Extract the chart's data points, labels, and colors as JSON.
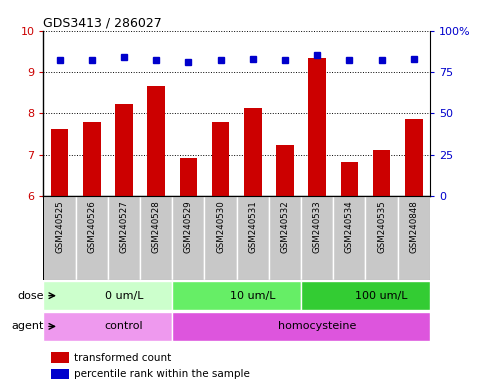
{
  "title": "GDS3413 / 286027",
  "samples": [
    "GSM240525",
    "GSM240526",
    "GSM240527",
    "GSM240528",
    "GSM240529",
    "GSM240530",
    "GSM240531",
    "GSM240532",
    "GSM240533",
    "GSM240534",
    "GSM240535",
    "GSM240848"
  ],
  "transformed_counts": [
    7.62,
    7.78,
    8.22,
    8.65,
    6.92,
    7.78,
    8.12,
    7.22,
    9.35,
    6.82,
    7.1,
    7.85
  ],
  "percentile_ranks": [
    82,
    82,
    84,
    82,
    81,
    82,
    83,
    82,
    85,
    82,
    82,
    83
  ],
  "ylim_left": [
    6,
    10
  ],
  "ylim_right": [
    0,
    100
  ],
  "yticks_left": [
    6,
    7,
    8,
    9,
    10
  ],
  "yticks_right": [
    0,
    25,
    50,
    75,
    100
  ],
  "bar_color": "#cc0000",
  "dot_color": "#0000cc",
  "dose_groups": [
    {
      "label": "0 um/L",
      "start": 0,
      "end": 4,
      "color": "#ccffcc"
    },
    {
      "label": "10 um/L",
      "start": 4,
      "end": 8,
      "color": "#66ee66"
    },
    {
      "label": "100 um/L",
      "start": 8,
      "end": 12,
      "color": "#33cc33"
    }
  ],
  "agent_groups": [
    {
      "label": "control",
      "start": 0,
      "end": 4,
      "color": "#ee99ee"
    },
    {
      "label": "homocysteine",
      "start": 4,
      "end": 12,
      "color": "#dd55dd"
    }
  ],
  "dose_label": "dose",
  "agent_label": "agent",
  "legend_bar_label": "transformed count",
  "legend_dot_label": "percentile rank within the sample",
  "bar_color_red": "#cc0000",
  "dot_color_blue": "#0000cc",
  "tick_bg_color": "#c8c8c8",
  "font_size_axis": 8,
  "font_size_small": 7
}
